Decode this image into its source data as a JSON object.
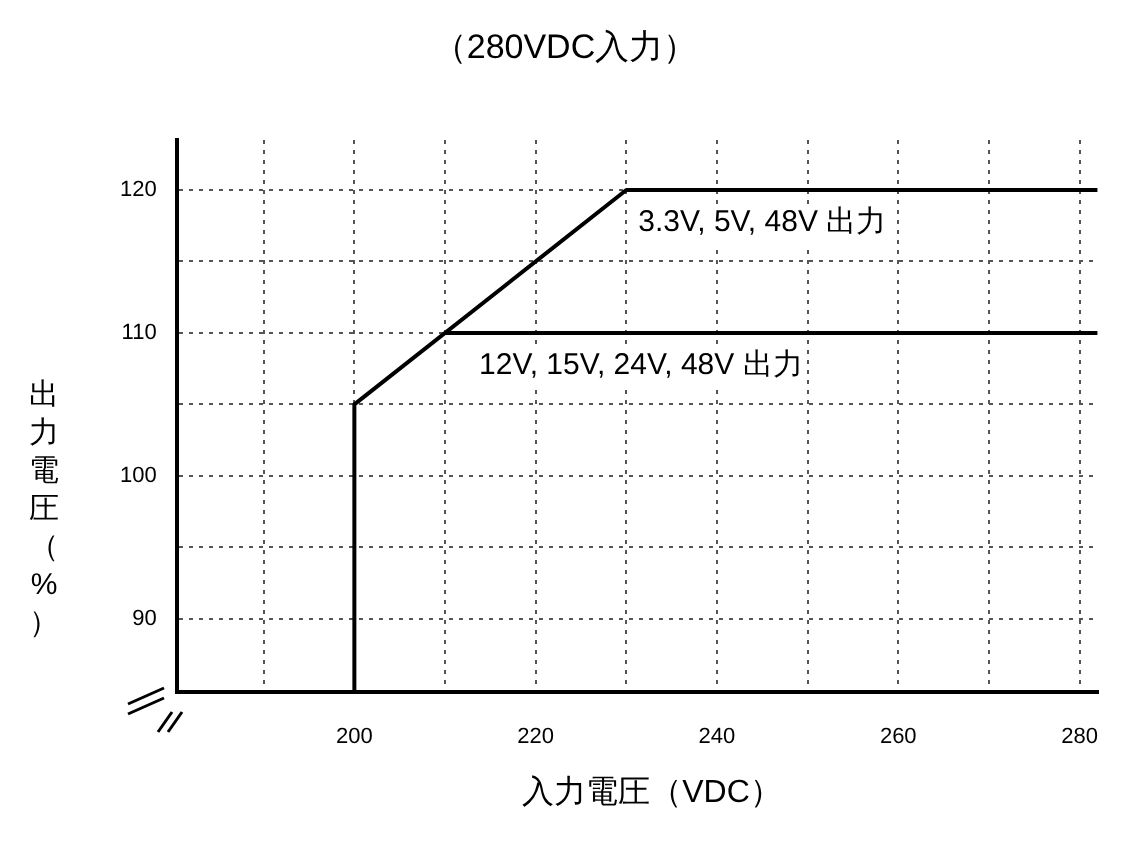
{
  "chart_data": {
    "type": "line",
    "title": "（280VDC入力）",
    "xlabel": "入力電圧（VDC）",
    "ylabel": "出力電圧（%）",
    "series": [
      {
        "name": "3.3V, 5V, 48V 出力",
        "color": "#000000",
        "x": [
          200,
          200,
          230,
          282
        ],
        "values": [
          84.9,
          105,
          120,
          120
        ]
      },
      {
        "name": "12V, 15V, 24V, 48V 出力",
        "color": "#000000",
        "x": [
          210,
          282
        ],
        "values": [
          110,
          110
        ]
      }
    ],
    "xlim": [
      180.4,
      282
    ],
    "xticks": [
      {
        "value": 190,
        "label": null
      },
      200,
      {
        "value": 210,
        "label": null
      },
      220,
      {
        "value": 230,
        "label": null
      },
      240,
      {
        "value": 250,
        "label": null
      },
      260,
      {
        "value": 270,
        "label": null
      },
      280
    ],
    "ylim": [
      84.9,
      123.5
    ],
    "yticks": [
      90,
      {
        "value": 95,
        "label": null
      },
      100,
      {
        "value": 105,
        "label": null
      },
      110,
      {
        "value": 115,
        "label": null
      },
      120
    ],
    "grid": true,
    "legend": false,
    "marker": "none",
    "line_style": "solid"
  }
}
